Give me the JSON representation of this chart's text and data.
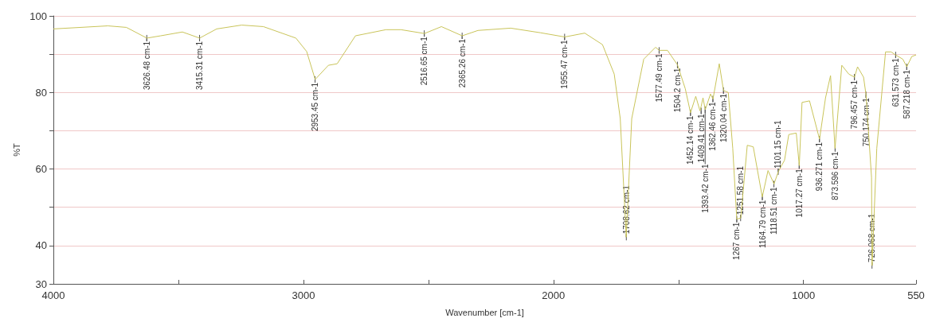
{
  "chart_data": {
    "type": "line",
    "xlabel": "Wavenumber [cm-1]",
    "ylabel": "%T",
    "xlim": [
      4000,
      550
    ],
    "xticks": [
      4000,
      {
        "value": 3500,
        "label": null
      },
      3000,
      {
        "value": 2500,
        "label": null
      },
      2000,
      {
        "value": 1500,
        "label": null
      },
      1000,
      550
    ],
    "ylim": [
      30,
      100
    ],
    "yticks": [
      30,
      40,
      {
        "value": 50,
        "label": null
      },
      60,
      {
        "value": 70,
        "label": null
      },
      80,
      {
        "value": 90,
        "label": null
      },
      100
    ],
    "grid": "y",
    "marker": "none",
    "line_style": "solid",
    "series": [
      {
        "color": "#c9c45a",
        "x": [
          4000,
          3782,
          3708,
          3626,
          3571,
          3484,
          3415,
          3347,
          3247,
          3160,
          3030,
          2987,
          2953,
          2900,
          2865,
          2792,
          2670,
          2610,
          2516,
          2448,
          2365,
          2302,
          2171,
          2052,
          1955,
          1875,
          1804,
          1757,
          1733,
          1709,
          1687,
          1639,
          1592,
          1577,
          1544,
          1504,
          1473,
          1452,
          1431,
          1414,
          1409,
          1402,
          1393,
          1388,
          1372,
          1362,
          1337,
          1320,
          1301,
          1283,
          1267,
          1251,
          1225,
          1201,
          1165,
          1142,
          1118,
          1101,
          1076,
          1059,
          1029,
          1017,
          1006,
          976,
          936,
          912,
          892,
          874,
          847,
          819,
          796,
          784,
          760,
          750,
          728,
          726,
          707,
          672,
          650,
          632,
          603,
          587,
          567,
          550
        ],
        "values": [
          96.6,
          97.4,
          97.0,
          94.2,
          94.8,
          95.8,
          94.2,
          96.6,
          97.6,
          97.2,
          94.2,
          90.7,
          83.4,
          87.1,
          87.5,
          94.8,
          96.4,
          96.4,
          95.4,
          97.2,
          94.8,
          96.2,
          96.8,
          95.6,
          94.5,
          95.5,
          92.5,
          84.8,
          73.2,
          42.2,
          73.2,
          88.7,
          91.8,
          91.0,
          91.0,
          87.2,
          81.0,
          74.7,
          79.0,
          75.2,
          76.5,
          78.6,
          75.5,
          76.5,
          79.6,
          78.3,
          87.5,
          80.5,
          80.0,
          65.4,
          46.9,
          47.2,
          66.2,
          65.8,
          52.7,
          59.6,
          56.1,
          59.3,
          62.3,
          69.0,
          69.4,
          60.9,
          77.4,
          77.8,
          67.8,
          78.6,
          84.4,
          65.4,
          87.1,
          84.8,
          84.0,
          86.7,
          84.0,
          79.4,
          57.8,
          34.8,
          65.4,
          90.6,
          90.6,
          89.8,
          88.7,
          86.7,
          89.4,
          89.8
        ]
      }
    ],
    "annotations": [
      {
        "text": "3626.48 cm-1",
        "x": 3626.48,
        "y": 94.2
      },
      {
        "text": "3415.31 cm-1",
        "x": 3415.31,
        "y": 94.2
      },
      {
        "text": "2953.45 cm-1",
        "x": 2953.45,
        "y": 83.4
      },
      {
        "text": "2516.65 cm-1",
        "x": 2516.65,
        "y": 95.4
      },
      {
        "text": "2365.26 cm-1",
        "x": 2365.26,
        "y": 94.8
      },
      {
        "text": "1955.47 cm-1",
        "x": 1955.47,
        "y": 94.5
      },
      {
        "text": "1708.62 cm-1",
        "x": 1708.62,
        "y": 42.2
      },
      {
        "text": "1577.49 cm-1",
        "x": 1577.49,
        "y": 91
      },
      {
        "text": "1504.2 cm-1",
        "x": 1504.2,
        "y": 87.2
      },
      {
        "text": "1452.14 cm-1",
        "x": 1452.14,
        "y": 74.7
      },
      {
        "text": "1409.41 cm-1",
        "x": 1409.41,
        "y": 75.2
      },
      {
        "text": "1393.42 cm-1",
        "x": 1393.42,
        "y": 75.5
      },
      {
        "text": "1362.46 cm-1",
        "x": 1362.46,
        "y": 78.3
      },
      {
        "text": "1320.04 cm-1",
        "x": 1320.04,
        "y": 80.5
      },
      {
        "text": "1267 cm-1",
        "x": 1267,
        "y": 46.9
      },
      {
        "text": "1251.58 cm-1",
        "x": 1251.58,
        "y": 47.2
      },
      {
        "text": "1164.79 cm-1",
        "x": 1164.79,
        "y": 52.7
      },
      {
        "text": "1118.51 cm-1",
        "x": 1118.51,
        "y": 56.1
      },
      {
        "text": "1101.15 cm-1",
        "x": 1101.15,
        "y": 59.3
      },
      {
        "text": "1017.27 cm-1",
        "x": 1017.27,
        "y": 60.9
      },
      {
        "text": "936.271 cm-1",
        "x": 936.271,
        "y": 67.8
      },
      {
        "text": "873.596 cm-1",
        "x": 873.596,
        "y": 65.4
      },
      {
        "text": "796.457 cm-1",
        "x": 796.457,
        "y": 84
      },
      {
        "text": "750.174 cm-1",
        "x": 750.174,
        "y": 79.4
      },
      {
        "text": "726.068 cm-1",
        "x": 726.068,
        "y": 34.8
      },
      {
        "text": "631.573 cm-1",
        "x": 631.573,
        "y": 89.8
      },
      {
        "text": "587.218 cm-1",
        "x": 587.218,
        "y": 86.7
      }
    ]
  }
}
